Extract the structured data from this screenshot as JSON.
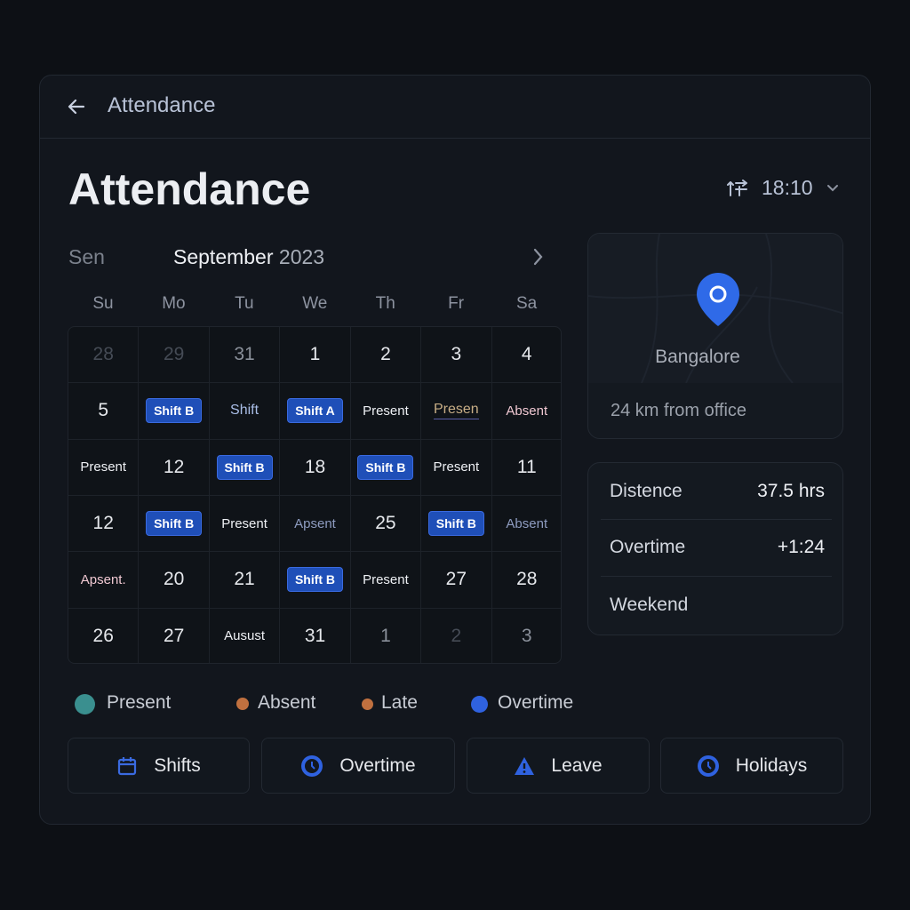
{
  "header": {
    "title": "Attendance"
  },
  "page": {
    "title": "Attendance",
    "time": "18:10"
  },
  "calendar": {
    "prev_label": "Sen",
    "month": "September",
    "year": "2023",
    "weekdays": [
      "Su",
      "Mo",
      "Tu",
      "We",
      "Th",
      "Fr",
      "Sa"
    ],
    "rows": [
      [
        "28",
        "29",
        "31",
        "1",
        "2",
        "3",
        "4"
      ],
      [
        "5",
        "Shift B",
        "Shift",
        "Shift A",
        "Present",
        "Presen",
        "Absent"
      ],
      [
        "Present",
        "12",
        "Shift B",
        "18",
        "Shift B",
        "Present",
        "11"
      ],
      [
        "12",
        "Shift B",
        "Present",
        "Apsent",
        "25",
        "Shift B",
        "Absent"
      ],
      [
        "Apsent.",
        "20",
        "21",
        "Shift B",
        "Present",
        "27",
        "28"
      ],
      [
        "26",
        "27",
        "Ausust",
        "31",
        "1",
        "2",
        "3"
      ]
    ]
  },
  "location": {
    "city": "Bangalore",
    "distance": "24 km from office"
  },
  "stats": [
    {
      "label": "Distence",
      "value": "37.5 hrs"
    },
    {
      "label": "Overtime",
      "value": "+1:24"
    },
    {
      "label": "Weekend"
    }
  ],
  "legend": [
    {
      "label": "Present",
      "color": "#3a8f8f"
    },
    {
      "label": "Absent",
      "color": "#c0703f"
    },
    {
      "label": "Late",
      "color": "#c0703f"
    },
    {
      "label": "Overtime",
      "color": "#2f62e0"
    }
  ],
  "buttons": [
    {
      "label": "Shifts"
    },
    {
      "label": "Overtime"
    },
    {
      "label": "Leave"
    },
    {
      "label": "Holidays"
    }
  ]
}
